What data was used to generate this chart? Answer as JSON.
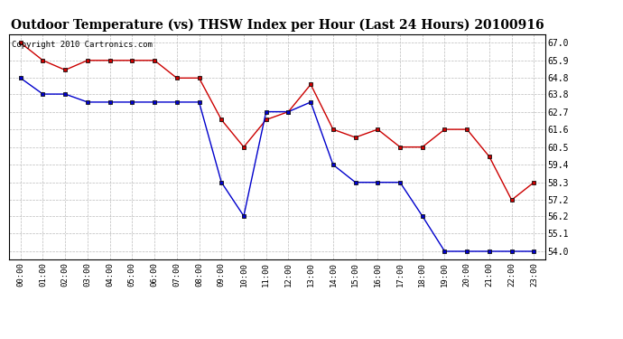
{
  "title": "Outdoor Temperature (vs) THSW Index per Hour (Last 24 Hours) 20100916",
  "copyright_text": "Copyright 2010 Cartronics.com",
  "hours": [
    0,
    1,
    2,
    3,
    4,
    5,
    6,
    7,
    8,
    9,
    10,
    11,
    12,
    13,
    14,
    15,
    16,
    17,
    18,
    19,
    20,
    21,
    22,
    23
  ],
  "hour_labels": [
    "00:00",
    "01:00",
    "02:00",
    "03:00",
    "04:00",
    "05:00",
    "06:00",
    "07:00",
    "08:00",
    "09:00",
    "10:00",
    "11:00",
    "12:00",
    "13:00",
    "14:00",
    "15:00",
    "16:00",
    "17:00",
    "18:00",
    "19:00",
    "20:00",
    "21:00",
    "22:00",
    "23:00"
  ],
  "red_data": [
    67.0,
    65.9,
    65.3,
    65.9,
    65.9,
    65.9,
    65.9,
    64.8,
    64.8,
    62.2,
    60.5,
    62.2,
    62.7,
    64.4,
    61.6,
    61.1,
    61.6,
    60.5,
    60.5,
    61.6,
    61.6,
    59.9,
    57.2,
    58.3
  ],
  "blue_data": [
    64.8,
    63.8,
    63.8,
    63.3,
    63.3,
    63.3,
    63.3,
    63.3,
    63.3,
    58.3,
    56.2,
    62.7,
    62.7,
    63.3,
    59.4,
    58.3,
    58.3,
    58.3,
    56.2,
    54.0,
    54.0,
    54.0,
    54.0,
    54.0
  ],
  "ylim_min": 53.5,
  "ylim_max": 67.55,
  "yticks": [
    54.0,
    55.1,
    56.2,
    57.2,
    58.3,
    59.4,
    60.5,
    61.6,
    62.7,
    63.8,
    64.8,
    65.9,
    67.0
  ],
  "red_color": "#cc0000",
  "blue_color": "#0000cc",
  "bg_color": "#ffffff",
  "grid_color": "#bbbbbb",
  "title_fontsize": 10,
  "copyright_fontsize": 6.5
}
